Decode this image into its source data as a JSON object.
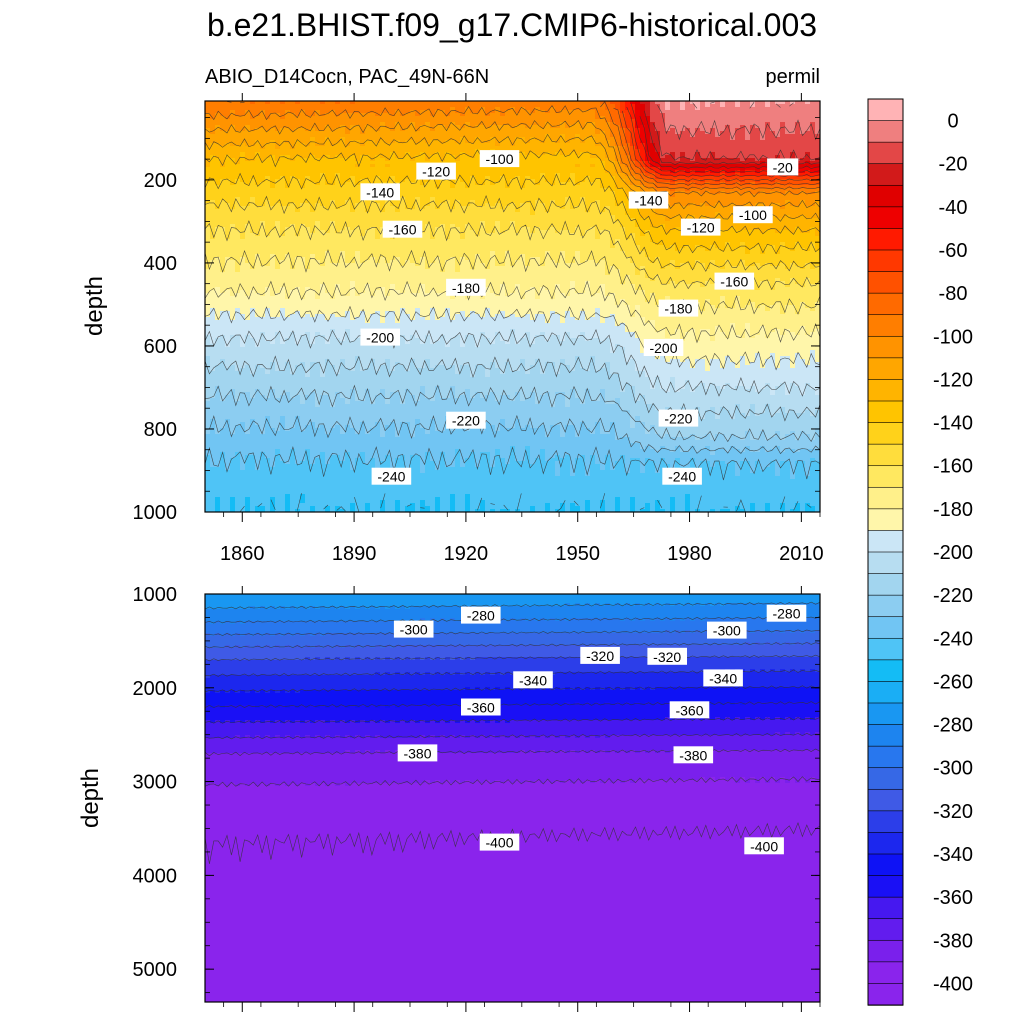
{
  "figure": {
    "title": "b.e21.BHIST.f09_g17.CMIP6-historical.003",
    "variable_label": "ABIO_D14Cocn, PAC_49N-66N",
    "units_label": "permil"
  },
  "chart_data": [
    {
      "type": "heatmap",
      "panel": "upper",
      "title": "ABIO_D14Cocn, PAC_49N-66N",
      "xlabel": "",
      "ylabel": "depth",
      "xlim": [
        1850,
        2015
      ],
      "ylim": [
        1000,
        10
      ],
      "y_inverted": true,
      "x_ticks": [
        1860,
        1890,
        1920,
        1950,
        1980,
        2010
      ],
      "y_ticks": [
        200,
        400,
        600,
        800,
        1000
      ],
      "contour_interval": 10,
      "contours_early_period": {
        "year": 1900,
        "depth": [
          10,
          150,
          230,
          320,
          470,
          580,
          720,
          870,
          1000
        ],
        "value": [
          -90,
          -130,
          -145,
          -160,
          -180,
          -200,
          -220,
          -240,
          -250
        ]
      },
      "contours_late_period": {
        "year": 2005,
        "depth": [
          10,
          150,
          230,
          320,
          470,
          700,
          820,
          880,
          1000
        ],
        "value": [
          0,
          -20,
          -100,
          -130,
          -165,
          -200,
          -220,
          -240,
          -250
        ]
      },
      "contour_labels": [
        {
          "text": "-100",
          "x": 1929,
          "depth": 150
        },
        {
          "text": "-120",
          "x": 1912,
          "depth": 180
        },
        {
          "text": "-140",
          "x": 1897,
          "depth": 230
        },
        {
          "text": "-160",
          "x": 1903,
          "depth": 320
        },
        {
          "text": "-180",
          "x": 1920,
          "depth": 460
        },
        {
          "text": "-200",
          "x": 1897,
          "depth": 580
        },
        {
          "text": "-220",
          "x": 1920,
          "depth": 780
        },
        {
          "text": "-240",
          "x": 1900,
          "depth": 915
        },
        {
          "text": "-140",
          "x": 1969,
          "depth": 250
        },
        {
          "text": "-120",
          "x": 1983,
          "depth": 315
        },
        {
          "text": "-100",
          "x": 1997,
          "depth": 285
        },
        {
          "text": "-20",
          "x": 2005,
          "depth": 170
        },
        {
          "text": "-160",
          "x": 1992,
          "depth": 445
        },
        {
          "text": "-180",
          "x": 1977,
          "depth": 510
        },
        {
          "text": "-200",
          "x": 1973,
          "depth": 605
        },
        {
          "text": "-220",
          "x": 1977,
          "depth": 775
        },
        {
          "text": "-240",
          "x": 1978,
          "depth": 915
        }
      ]
    },
    {
      "type": "heatmap",
      "panel": "lower",
      "xlabel": "",
      "ylabel": "depth",
      "xlim": [
        1850,
        2015
      ],
      "ylim": [
        5350,
        1000
      ],
      "y_inverted": true,
      "y_ticks": [
        1000,
        2000,
        3000,
        4000,
        5000
      ],
      "contour_interval": 10,
      "contours": {
        "depth": [
          1000,
          1300,
          1700,
          2200,
          2700,
          3200,
          3650,
          5350
        ],
        "value": [
          -270,
          -290,
          -320,
          -350,
          -380,
          -395,
          -400,
          -405
        ]
      },
      "contour_labels": [
        {
          "text": "-280",
          "x": 1924,
          "depth": 1230
        },
        {
          "text": "-300",
          "x": 1906,
          "depth": 1380
        },
        {
          "text": "-320",
          "x": 1956,
          "depth": 1660
        },
        {
          "text": "-320",
          "x": 1974,
          "depth": 1670
        },
        {
          "text": "-300",
          "x": 1990,
          "depth": 1390
        },
        {
          "text": "-280",
          "x": 2006,
          "depth": 1210
        },
        {
          "text": "-340",
          "x": 1938,
          "depth": 1920
        },
        {
          "text": "-340",
          "x": 1989,
          "depth": 1900
        },
        {
          "text": "-360",
          "x": 1924,
          "depth": 2210
        },
        {
          "text": "-360",
          "x": 1980,
          "depth": 2240
        },
        {
          "text": "-380",
          "x": 1907,
          "depth": 2700
        },
        {
          "text": "-380",
          "x": 1981,
          "depth": 2720
        },
        {
          "text": "-400",
          "x": 1929,
          "depth": 3650
        },
        {
          "text": "-400",
          "x": 2000,
          "depth": 3690
        }
      ]
    }
  ],
  "colorbar": {
    "labels": [
      "0",
      "-20",
      "-40",
      "-60",
      "-80",
      "-100",
      "-120",
      "-140",
      "-160",
      "-180",
      "-200",
      "-220",
      "-240",
      "-260",
      "-280",
      "-300",
      "-320",
      "-340",
      "-360",
      "-380",
      "-400"
    ],
    "levels_max": 10,
    "levels_min": -410,
    "level_step": 10,
    "colors": [
      "#ffb3b5",
      "#ef7f7f",
      "#e34747",
      "#d21a1a",
      "#e00000",
      "#ee0000",
      "#ff1a00",
      "#ff3800",
      "#ff5100",
      "#ff6a00",
      "#ff7e00",
      "#ff9300",
      "#ffa600",
      "#ffb400",
      "#ffc400",
      "#ffd21a",
      "#ffdd3c",
      "#ffe860",
      "#fff08a",
      "#fff6aa",
      "#cbe6f6",
      "#b7ddf1",
      "#a2d5ef",
      "#8ccdf1",
      "#71c5f3",
      "#4fc4f6",
      "#14bcf5",
      "#1aaef5",
      "#1997f2",
      "#1d84ef",
      "#2877ee",
      "#3668e6",
      "#3f5ae6",
      "#2c3ee9",
      "#1c27ee",
      "#0e12f5",
      "#1a10f5",
      "#4618f0",
      "#621cee",
      "#7a20ec",
      "#8a24ec",
      "#8a24ec"
    ]
  }
}
